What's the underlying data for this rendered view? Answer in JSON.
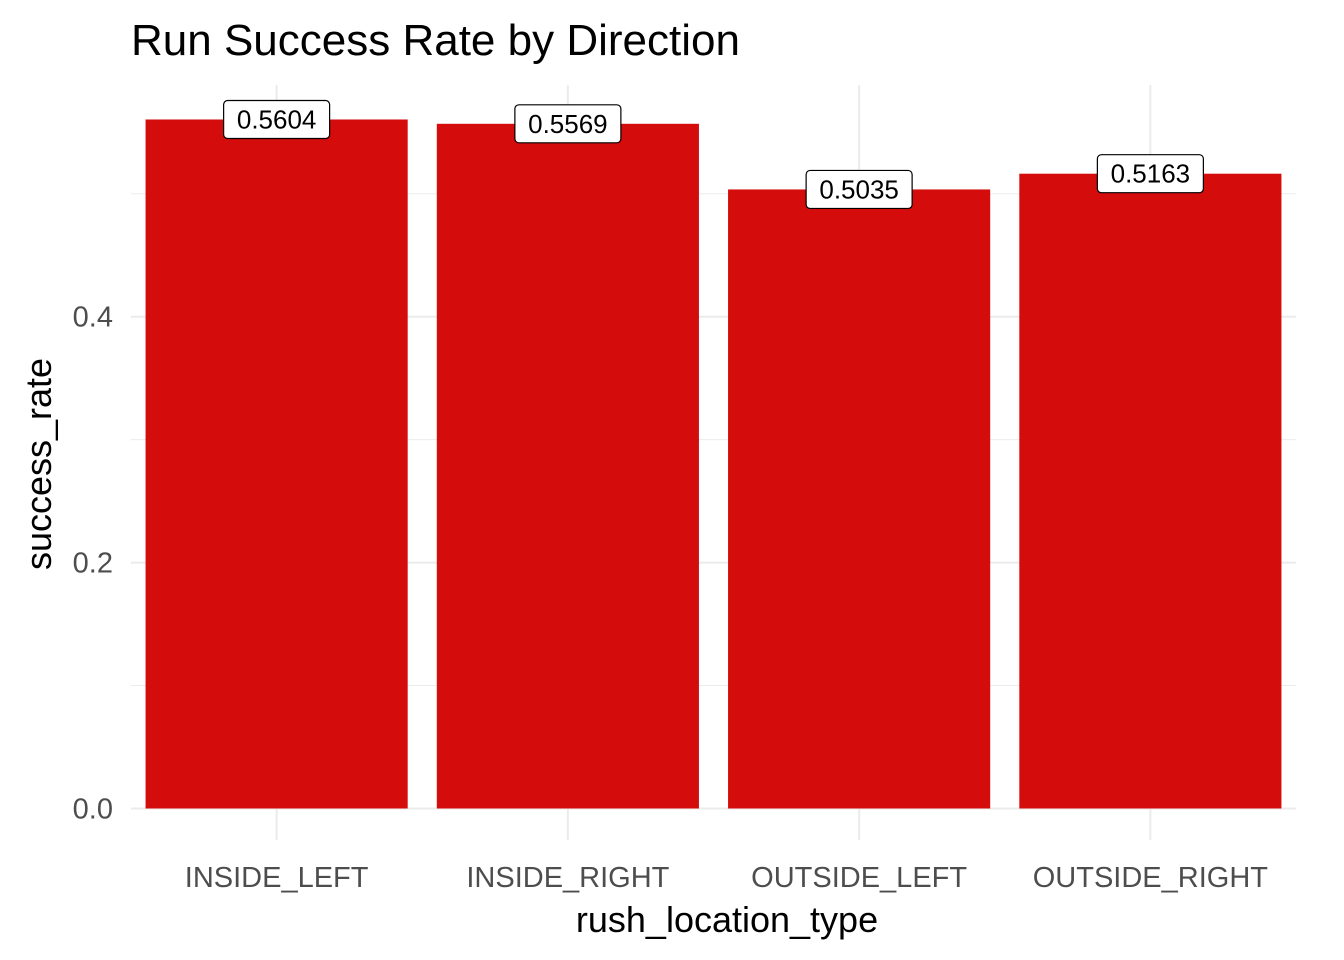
{
  "chart_data": {
    "type": "bar",
    "title": "Run Success Rate by Direction",
    "xlabel": "rush_location_type",
    "ylabel": "success_rate",
    "categories": [
      "INSIDE_LEFT",
      "INSIDE_RIGHT",
      "OUTSIDE_LEFT",
      "OUTSIDE_RIGHT"
    ],
    "values": [
      0.5604,
      0.5569,
      0.5035,
      0.5163
    ],
    "data_labels": [
      "0.5604",
      "0.5569",
      "0.5035",
      "0.5163"
    ],
    "y_ticks": [
      0.0,
      0.2,
      0.4
    ],
    "y_tick_labels": [
      "0.0",
      "0.2",
      "0.4"
    ],
    "y_minor_ticks": [
      0.1,
      0.3,
      0.5
    ],
    "ylim": [
      0,
      0.5604
    ],
    "grid": true,
    "legend": "none",
    "bar_color": "#d40c0c",
    "grid_color": "#ebebeb",
    "background": "#ffffff"
  }
}
